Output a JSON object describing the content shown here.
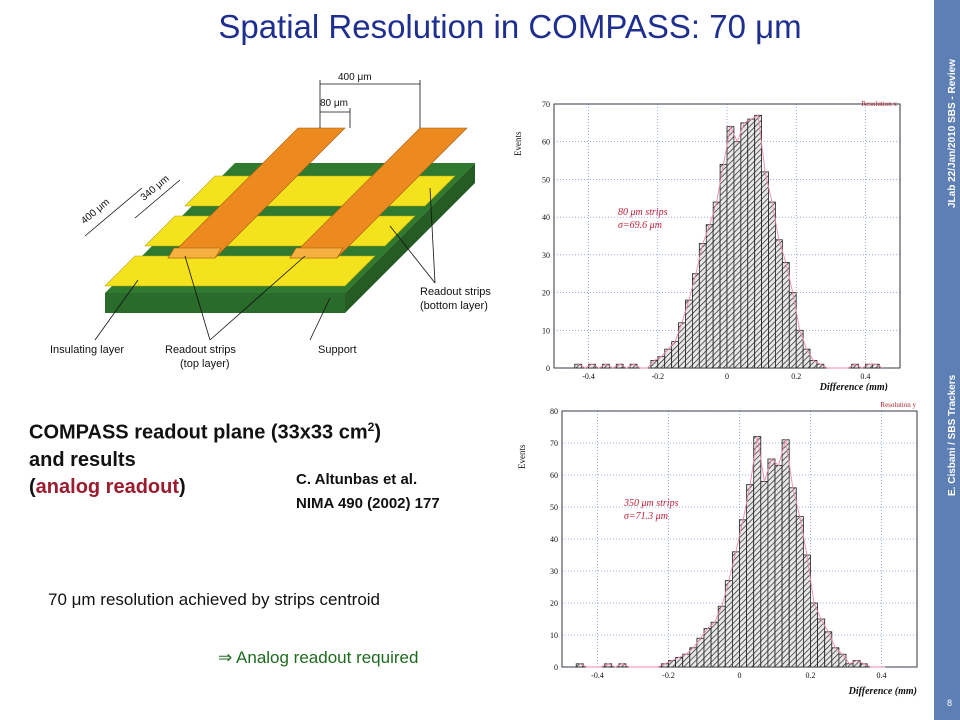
{
  "slide": {
    "title": "Spatial Resolution in COMPASS: 70 μm",
    "sidebar_top": "JLab 22/Jan/2010 SBS - Review",
    "sidebar_bottom": "E. Cisbani / SBS Trackers",
    "slide_number": "8"
  },
  "diagram": {
    "dim_400_top": "400 μm",
    "dim_80": "80 μm",
    "dim_400_side": "400 μm",
    "dim_340": "340 μm",
    "label_readout_bottom_1": "Readout strips",
    "label_readout_bottom_2": "(bottom layer)",
    "label_insulating": "Insulating layer",
    "label_readout_top_1": "Readout strips",
    "label_readout_top_2": "(top layer)",
    "label_support": "Support"
  },
  "caption": {
    "line1": "COMPASS readout plane (33x33 cm",
    "line1_sup": "2",
    "line1_end": ")",
    "line2": "and results",
    "line3_open": "(",
    "line3_red": "analog readout",
    "line3_close": ")"
  },
  "citation": {
    "line1": "C. Altunbas et al.",
    "line2": "NIMA 490 (2002) 177"
  },
  "result_text": "70 μm resolution achieved by strips centroid",
  "analog_text": "⇒ Analog readout required",
  "colors": {
    "title": "#1f2f8f",
    "sidebar": "#5d7fb3",
    "strip_yellow": "#f4e21c",
    "strip_orange": "#ec8a1f",
    "support_green": "#2f7a2f",
    "red": "#9b1c2e",
    "green_text": "#1e6b1e"
  },
  "chart_data": [
    {
      "type": "bar",
      "title": "Resolution x",
      "xlabel": "Difference (mm)",
      "ylabel": "Events",
      "xlim": [
        -0.5,
        0.5
      ],
      "ylim": [
        0,
        70
      ],
      "x_ticks": [
        "-0.4",
        "-0.2",
        "0",
        "0.2",
        "0.4"
      ],
      "y_ticks": [
        "0",
        "10",
        "20",
        "30",
        "40",
        "50",
        "60",
        "70"
      ],
      "annotation_1": "80 μm strips",
      "annotation_2": "σ=69.6 μm",
      "bin_start": -0.44,
      "bin_width": 0.02,
      "values": [
        1,
        0,
        1,
        0,
        1,
        0,
        1,
        0,
        1,
        0,
        0,
        2,
        3,
        5,
        7,
        12,
        18,
        25,
        33,
        38,
        44,
        54,
        64,
        60,
        65,
        66,
        67,
        52,
        44,
        34,
        28,
        20,
        10,
        5,
        2,
        1,
        0,
        0,
        0,
        0,
        1,
        0,
        1,
        1,
        0
      ]
    },
    {
      "type": "bar",
      "title": "Resolution y",
      "xlabel": "Difference (mm)",
      "ylabel": "Events",
      "xlim": [
        -0.5,
        0.5
      ],
      "ylim": [
        0,
        80
      ],
      "x_ticks": [
        "-0.4",
        "-0.2",
        "0",
        "0.2",
        "0.4"
      ],
      "y_ticks": [
        "0",
        "10",
        "20",
        "30",
        "40",
        "50",
        "60",
        "70",
        "80"
      ],
      "annotation_1": "350 μm strips",
      "annotation_2": "σ=71.3 μm",
      "bin_start": -0.46,
      "bin_width": 0.02,
      "values": [
        1,
        0,
        0,
        0,
        1,
        0,
        1,
        0,
        0,
        0,
        0,
        0,
        1,
        2,
        3,
        4,
        6,
        9,
        12,
        14,
        19,
        27,
        36,
        46,
        57,
        72,
        58,
        65,
        63,
        71,
        56,
        47,
        35,
        20,
        15,
        11,
        6,
        4,
        1,
        2,
        1,
        0,
        0,
        0
      ]
    }
  ]
}
